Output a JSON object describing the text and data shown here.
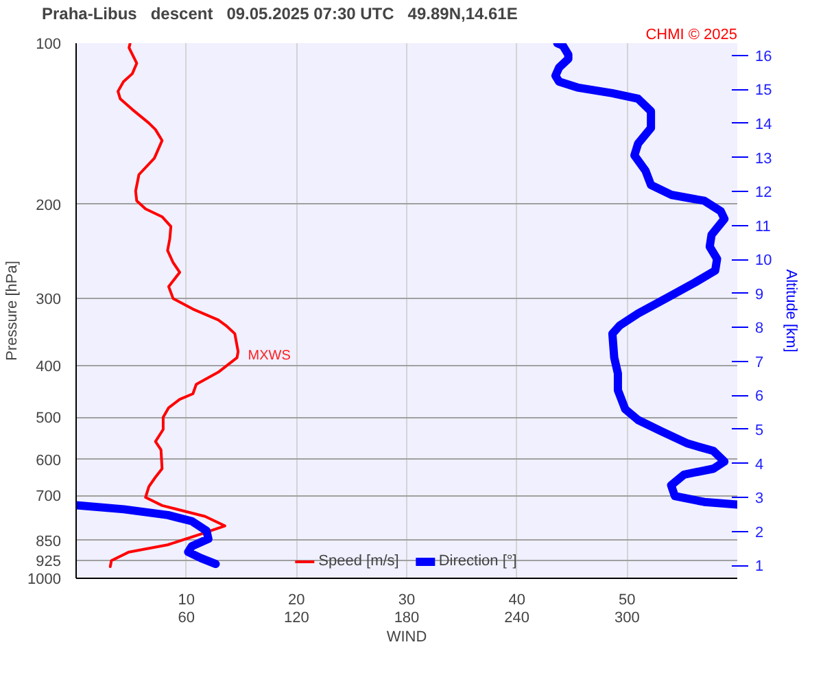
{
  "chart_data": {
    "type": "line",
    "title": "Praha-Libus   descent   09.05.2025 07:30 UTC   49.89N,14.61E",
    "xlabel": "WIND",
    "ylabel": "Pressure [hPa]",
    "y2label": "Altitude [km]",
    "annotations": [
      "CHMI © 2025",
      {
        "text": "MXWS",
        "x": 14.6,
        "y": 384
      }
    ],
    "xlim": [
      0,
      60
    ],
    "x2lim": [
      0,
      360
    ],
    "xticks": [
      10,
      20,
      30,
      40,
      50
    ],
    "x2ticks": [
      60,
      120,
      180,
      240,
      300
    ],
    "ylim": [
      1000,
      100
    ],
    "log": "y",
    "yticks": [
      100,
      200,
      300,
      400,
      500,
      600,
      700,
      850,
      925,
      1000
    ],
    "y2lim": [
      0.62,
      16.36
    ],
    "y2ticks": [
      1,
      2,
      3,
      4,
      5,
      6,
      7,
      8,
      9,
      10,
      11,
      12,
      13,
      14,
      15,
      16
    ],
    "grid": true,
    "legend": "bottom",
    "marker": "none",
    "line_style": "solid",
    "series": [
      {
        "name": "Speed [m/s]",
        "color": "#ff0000",
        "x": [
          4.9,
          4.8,
          5.5,
          5.1,
          4.3,
          3.8,
          4.0,
          5.1,
          6.6,
          7.2,
          7.8,
          7.1,
          5.7,
          5.4,
          5.5,
          6.3,
          7.8,
          8.6,
          8.5,
          8.3,
          8.8,
          9.4,
          8.4,
          8.8,
          10.6,
          12.9,
          13.6,
          14.4,
          14.7,
          14.6,
          12.9,
          10.9,
          10.6,
          9.4,
          8.4,
          7.9,
          7.9,
          7.2,
          7.7,
          7.8,
          7.2,
          6.6,
          6.3,
          7.8,
          11.7,
          13.5,
          11.3,
          8.3,
          4.8,
          3.2,
          3.1
        ],
        "values": [
          100,
          102,
          109,
          114,
          118,
          123,
          127,
          133,
          141,
          145,
          152,
          164,
          176,
          189,
          197,
          204,
          211,
          220,
          232,
          244,
          257,
          268,
          285,
          300,
          314,
          329,
          337,
          349,
          377,
          387,
          412,
          434,
          452,
          463,
          480,
          500,
          527,
          555,
          575,
          624,
          647,
          674,
          706,
          731,
          766,
          798,
          827,
          866,
          893,
          927,
          951
        ]
      },
      {
        "name": "Direction [°]",
        "color": "#0000ff",
        "axis": "x2",
        "x": [
          262,
          265,
          268,
          268,
          263,
          261,
          263,
          273,
          292,
          306,
          313,
          313,
          306,
          304,
          310,
          313,
          324,
          342,
          351,
          353,
          346,
          345,
          349,
          348,
          337,
          321,
          306,
          296,
          292,
          293,
          295,
          295,
          299,
          306,
          319,
          333,
          347,
          353,
          347,
          331,
          324,
          326,
          342,
          360,
          null,
          0,
          26,
          50,
          63,
          71,
          72,
          63,
          61,
          68,
          76
        ],
        "values": [
          100,
          101,
          105,
          107,
          111,
          115,
          118,
          121,
          124,
          127,
          134,
          144,
          154,
          162,
          173,
          184,
          192,
          197,
          206,
          213,
          228,
          240,
          253,
          266,
          280,
          300,
          320,
          337,
          349,
          387,
          414,
          445,
          483,
          506,
          532,
          560,
          578,
          605,
          624,
          640,
          670,
          702,
          720,
          728,
          null,
          730,
          743,
          762,
          782,
          815,
          844,
          871,
          893,
          917,
          940
        ]
      }
    ]
  }
}
